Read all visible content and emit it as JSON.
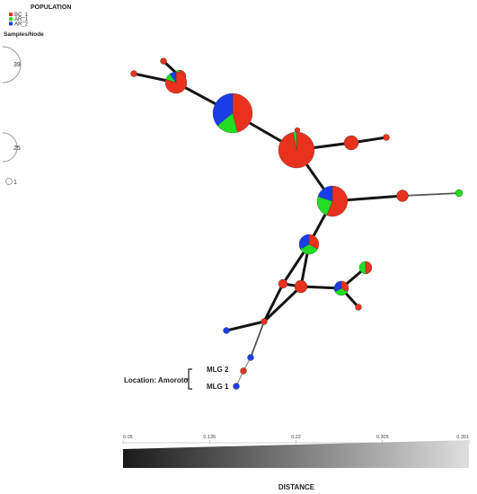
{
  "legend": {
    "title": "POPULATION",
    "items": [
      {
        "label": "BC_1",
        "color": "#e8321e"
      },
      {
        "label": "AR_1",
        "color": "#22dd22"
      },
      {
        "label": "AR_2",
        "color": "#1a3ee6"
      }
    ]
  },
  "size_legend": {
    "title": "Samples/Node",
    "values": [
      "39",
      "25",
      "1"
    ]
  },
  "annotation": {
    "location_label": "Location: Amoroto",
    "mlg2": "MLG 2",
    "mlg1": "MLG 1"
  },
  "distance_scale": {
    "title": "DISTANCE",
    "ticks": [
      "0.05",
      "0.135",
      "0.22",
      "0.305",
      "0.391"
    ],
    "dark_color": "#1a1a1a",
    "light_color": "#dedede"
  },
  "network": {
    "nodes": [
      {
        "id": "n1",
        "samples": [
          1,
          0,
          0
        ]
      },
      {
        "id": "n2",
        "samples": [
          1,
          0,
          0
        ]
      },
      {
        "id": "n3",
        "samples": [
          1,
          1,
          0
        ]
      },
      {
        "id": "n4",
        "samples": [
          8,
          1,
          1
        ]
      },
      {
        "id": "n5",
        "samples": [
          18,
          7,
          14
        ]
      },
      {
        "id": "n6",
        "samples": [
          1,
          0,
          0
        ]
      },
      {
        "id": "n7",
        "samples": [
          34,
          1,
          0
        ]
      },
      {
        "id": "n8",
        "samples": [
          3,
          0,
          0
        ]
      },
      {
        "id": "n9",
        "samples": [
          1,
          0,
          0
        ]
      },
      {
        "id": "n10",
        "samples": [
          14,
          6,
          5
        ]
      },
      {
        "id": "n11",
        "samples": [
          2,
          0,
          0
        ]
      },
      {
        "id": "n12",
        "samples": [
          0,
          1,
          0
        ]
      },
      {
        "id": "n13",
        "samples": [
          3,
          3,
          3
        ]
      },
      {
        "id": "n14",
        "samples": [
          1,
          1,
          0
        ]
      },
      {
        "id": "n15",
        "samples": [
          1,
          0,
          0
        ]
      },
      {
        "id": "n16",
        "samples": [
          2,
          0,
          0
        ]
      },
      {
        "id": "n17",
        "samples": [
          1,
          1,
          1
        ]
      },
      {
        "id": "n18",
        "samples": [
          1,
          0,
          0
        ]
      },
      {
        "id": "n19",
        "samples": [
          1,
          0,
          0
        ]
      },
      {
        "id": "n20",
        "samples": [
          0,
          0,
          1
        ]
      },
      {
        "id": "n21",
        "samples": [
          0,
          0,
          1
        ]
      },
      {
        "id": "n22",
        "samples": [
          1,
          0,
          0
        ]
      },
      {
        "id": "n23",
        "samples": [
          0,
          0,
          1
        ]
      }
    ],
    "edges": [
      {
        "from": "n1",
        "to": "n4",
        "weight": "dark"
      },
      {
        "from": "n2",
        "to": "n3",
        "weight": "dark"
      },
      {
        "from": "n3",
        "to": "n4",
        "weight": "dark"
      },
      {
        "from": "n4",
        "to": "n5",
        "weight": "dark"
      },
      {
        "from": "n5",
        "to": "n7",
        "weight": "dark"
      },
      {
        "from": "n6",
        "to": "n7",
        "weight": "dark"
      },
      {
        "from": "n7",
        "to": "n8",
        "weight": "dark"
      },
      {
        "from": "n8",
        "to": "n9",
        "weight": "dark"
      },
      {
        "from": "n7",
        "to": "n10",
        "weight": "dark"
      },
      {
        "from": "n10",
        "to": "n11",
        "weight": "dark"
      },
      {
        "from": "n11",
        "to": "n12",
        "weight": "mid"
      },
      {
        "from": "n10",
        "to": "n13",
        "weight": "dark"
      },
      {
        "from": "n13",
        "to": "n15",
        "weight": "dark"
      },
      {
        "from": "n13",
        "to": "n16",
        "weight": "dark"
      },
      {
        "from": "n15",
        "to": "n16",
        "weight": "dark"
      },
      {
        "from": "n16",
        "to": "n17",
        "weight": "dark"
      },
      {
        "from": "n17",
        "to": "n14",
        "weight": "dark"
      },
      {
        "from": "n17",
        "to": "n18",
        "weight": "dark"
      },
      {
        "from": "n15",
        "to": "n19",
        "weight": "dark"
      },
      {
        "from": "n16",
        "to": "n19",
        "weight": "dark"
      },
      {
        "from": "n19",
        "to": "n20",
        "weight": "dark"
      },
      {
        "from": "n19",
        "to": "n21",
        "weight": "mid"
      },
      {
        "from": "n21",
        "to": "n22",
        "weight": "light"
      },
      {
        "from": "n22",
        "to": "n23",
        "weight": "light"
      }
    ]
  }
}
